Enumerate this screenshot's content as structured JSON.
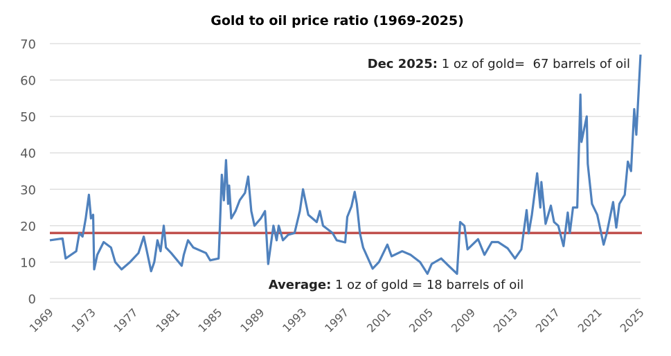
{
  "chart_data": {
    "type": "line",
    "title": "Gold to oil price ratio (1969-2025)",
    "xlabel": "",
    "ylabel": "",
    "xlim": [
      1969,
      2025
    ],
    "ylim": [
      0,
      70
    ],
    "grid": true,
    "y_ticks": [
      0,
      10,
      20,
      30,
      40,
      50,
      60,
      70
    ],
    "x_ticks": [
      "1969",
      "1973",
      "1977",
      "1981",
      "1985",
      "1989",
      "1993",
      "1997",
      "2001",
      "2005",
      "2009",
      "2013",
      "2017",
      "2021",
      "2025"
    ],
    "colors": {
      "series": "#4f81bd",
      "average": "#c0504d",
      "grid": "#d9d9d9"
    },
    "average": {
      "value": 18,
      "label_bold": "Average:",
      "label_rest": " 1 oz of gold = 18 barrels of oil"
    },
    "annotation": {
      "label_bold": "Dec 2025:",
      "label_rest": " 1 oz of gold=  67 barrels of oil"
    },
    "series": [
      {
        "points": [
          [
            1969.0,
            16
          ],
          [
            1970.2,
            16.5
          ],
          [
            1970.5,
            11
          ],
          [
            1971.5,
            13
          ],
          [
            1971.8,
            18
          ],
          [
            1972.1,
            17
          ],
          [
            1972.4,
            22
          ],
          [
            1972.7,
            28.5
          ],
          [
            1972.9,
            22
          ],
          [
            1973.1,
            23
          ],
          [
            1973.2,
            8
          ],
          [
            1973.5,
            12
          ],
          [
            1974.1,
            15.5
          ],
          [
            1974.8,
            14
          ],
          [
            1975.2,
            10
          ],
          [
            1975.8,
            8
          ],
          [
            1976.6,
            10
          ],
          [
            1977.4,
            12.5
          ],
          [
            1977.9,
            17
          ],
          [
            1978.2,
            13
          ],
          [
            1978.6,
            7.5
          ],
          [
            1978.9,
            10
          ],
          [
            1979.2,
            16
          ],
          [
            1979.5,
            13
          ],
          [
            1979.8,
            20
          ],
          [
            1980.0,
            14
          ],
          [
            1980.5,
            12.5
          ],
          [
            1981.5,
            9
          ],
          [
            1981.7,
            12
          ],
          [
            1982.1,
            16
          ],
          [
            1982.6,
            14
          ],
          [
            1983.8,
            12.5
          ],
          [
            1984.2,
            10.5
          ],
          [
            1985.0,
            11
          ],
          [
            1985.1,
            18
          ],
          [
            1985.3,
            34
          ],
          [
            1985.5,
            27
          ],
          [
            1985.7,
            38
          ],
          [
            1985.9,
            26
          ],
          [
            1986.0,
            31
          ],
          [
            1986.2,
            22
          ],
          [
            1986.6,
            24
          ],
          [
            1987.0,
            27
          ],
          [
            1987.5,
            29
          ],
          [
            1987.8,
            33.5
          ],
          [
            1988.1,
            24
          ],
          [
            1988.4,
            20
          ],
          [
            1989.0,
            22
          ],
          [
            1989.4,
            24
          ],
          [
            1989.5,
            19
          ],
          [
            1989.7,
            9.5
          ],
          [
            1990.2,
            20
          ],
          [
            1990.5,
            16
          ],
          [
            1990.7,
            20
          ],
          [
            1991.1,
            16
          ],
          [
            1991.6,
            17.5
          ],
          [
            1992.2,
            18
          ],
          [
            1992.7,
            24
          ],
          [
            1993.0,
            30
          ],
          [
            1993.5,
            23
          ],
          [
            1994.3,
            21
          ],
          [
            1994.6,
            24
          ],
          [
            1994.9,
            20
          ],
          [
            1995.8,
            18
          ],
          [
            1996.2,
            16
          ],
          [
            1997.0,
            15.4
          ],
          [
            1997.2,
            22.4
          ],
          [
            1997.6,
            25.3
          ],
          [
            1997.9,
            29.3
          ],
          [
            1998.1,
            26
          ],
          [
            1998.4,
            17.9
          ],
          [
            1998.7,
            14
          ],
          [
            1999.6,
            8.2
          ],
          [
            2000.2,
            10
          ],
          [
            2001.0,
            14.8
          ],
          [
            2001.4,
            11.6
          ],
          [
            2002.4,
            13
          ],
          [
            2003.2,
            12
          ],
          [
            2004.1,
            10
          ],
          [
            2004.8,
            6.8
          ],
          [
            2005.2,
            9.5
          ],
          [
            2006.1,
            11
          ],
          [
            2006.8,
            9
          ],
          [
            2007.6,
            6.8
          ],
          [
            2007.9,
            21
          ],
          [
            2008.3,
            20
          ],
          [
            2008.6,
            13.5
          ],
          [
            2009.6,
            16.3
          ],
          [
            2010.2,
            12
          ],
          [
            2010.9,
            15.5
          ],
          [
            2011.5,
            15.5
          ],
          [
            2012.4,
            13.8
          ],
          [
            2013.1,
            11
          ],
          [
            2013.7,
            13.5
          ],
          [
            2014.2,
            24.3
          ],
          [
            2014.4,
            17.9
          ],
          [
            2014.7,
            23
          ],
          [
            2015.2,
            34.4
          ],
          [
            2015.5,
            25
          ],
          [
            2015.6,
            32
          ],
          [
            2016.0,
            20.5
          ],
          [
            2016.5,
            25.5
          ],
          [
            2016.8,
            21
          ],
          [
            2017.2,
            20
          ],
          [
            2017.7,
            14.4
          ],
          [
            2018.1,
            23.6
          ],
          [
            2018.3,
            18
          ],
          [
            2018.6,
            25
          ],
          [
            2019.0,
            25
          ],
          [
            2019.3,
            56
          ],
          [
            2019.4,
            43
          ],
          [
            2019.9,
            50
          ],
          [
            2020.0,
            37
          ],
          [
            2020.4,
            26
          ],
          [
            2020.9,
            23
          ],
          [
            2021.5,
            14.8
          ],
          [
            2021.8,
            18
          ],
          [
            2022.4,
            26.5
          ],
          [
            2022.7,
            19.5
          ],
          [
            2023.0,
            26
          ],
          [
            2023.5,
            28.5
          ],
          [
            2023.8,
            37.6
          ],
          [
            2024.1,
            35
          ],
          [
            2024.4,
            52
          ],
          [
            2024.6,
            45
          ],
          [
            2024.8,
            56
          ],
          [
            2025.0,
            67
          ]
        ]
      }
    ]
  }
}
